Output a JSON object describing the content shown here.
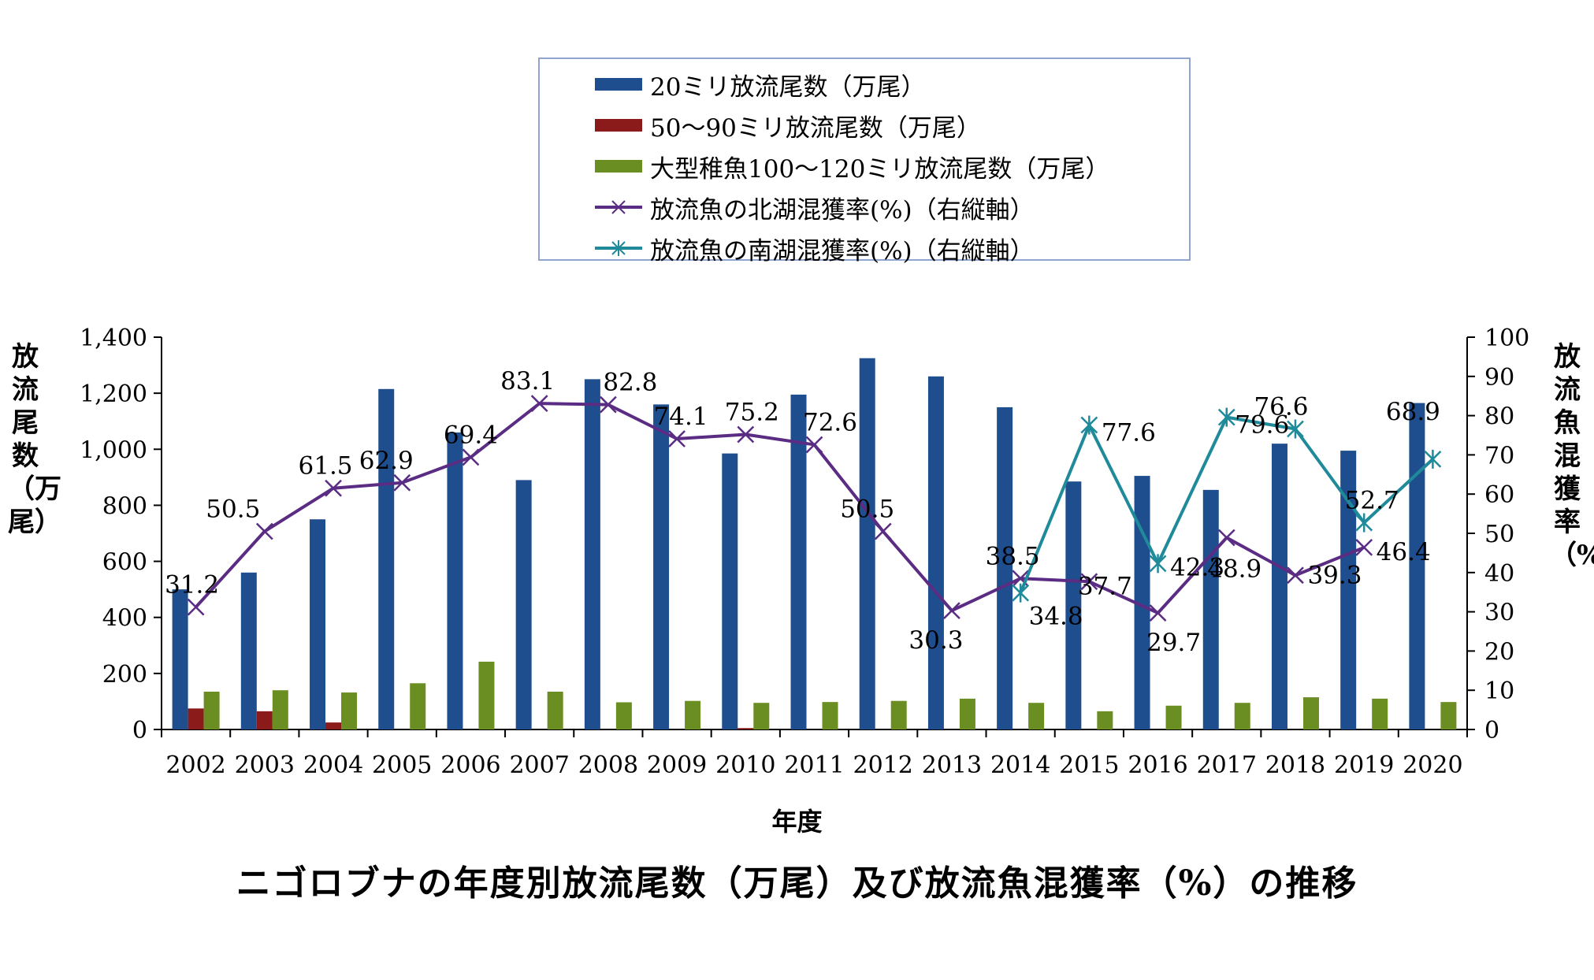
{
  "legend": {
    "s1": "20ミリ放流尾数（万尾）",
    "s2": "50～90ミリ放流尾数（万尾）",
    "s3": "大型稚魚100～120ミリ放流尾数（万尾）",
    "s4": "放流魚の北湖混獲率(%)（右縦軸）",
    "s5": "放流魚の南湖混獲率(%)（右縦軸）"
  },
  "labels": {
    "ylabel_left": "放流尾数（万尾）",
    "ylabel_right": "放流魚混獲率（%）",
    "xlabel": "年度",
    "title": "ニゴロブナの年度別放流尾数（万尾）及び放流魚混獲率（%）の推移"
  },
  "colors": {
    "s1": "#1f4e8f",
    "s2": "#8b1a1a",
    "s3": "#6b8e23",
    "s4": "#5b2c83",
    "s5": "#1f8a9a"
  },
  "chart_data": {
    "type": "bar",
    "categories": [
      "2002",
      "2003",
      "2004",
      "2005",
      "2006",
      "2007",
      "2008",
      "2009",
      "2010",
      "2011",
      "2012",
      "2013",
      "2014",
      "2015",
      "2016",
      "2017",
      "2018",
      "2019",
      "2020"
    ],
    "xlabel": "年度",
    "ylabel": "放流尾数（万尾）",
    "y2label": "放流魚混獲率（%）",
    "ylim": [
      0,
      1400
    ],
    "y2lim": [
      0,
      100
    ],
    "yticks": [
      "0",
      "200",
      "400",
      "600",
      "800",
      "1,000",
      "1,200",
      "1,400"
    ],
    "y2ticks": [
      "0",
      "10",
      "20",
      "30",
      "40",
      "50",
      "60",
      "70",
      "80",
      "90",
      "100"
    ],
    "grid": false,
    "legend_position": "top-center",
    "series": [
      {
        "name": "20ミリ放流尾数（万尾）",
        "type": "bar",
        "axis": "left",
        "values": [
          500,
          560,
          750,
          1215,
          1060,
          890,
          1250,
          1160,
          985,
          1195,
          1325,
          1260,
          1150,
          885,
          905,
          855,
          1020,
          995,
          1165
        ]
      },
      {
        "name": "50～90ミリ放流尾数（万尾）",
        "type": "bar",
        "axis": "left",
        "values": [
          75,
          65,
          25,
          0,
          0,
          0,
          0,
          0,
          5,
          0,
          0,
          0,
          0,
          0,
          0,
          0,
          0,
          0,
          0
        ]
      },
      {
        "name": "大型稚魚100～120ミリ放流尾数（万尾）",
        "type": "bar",
        "axis": "left",
        "values": [
          135,
          140,
          132,
          165,
          242,
          135,
          97,
          102,
          95,
          98,
          102,
          110,
          95,
          65,
          85,
          95,
          115,
          110,
          98
        ]
      },
      {
        "name": "放流魚の北湖混獲率(%)（右縦軸）",
        "type": "line",
        "axis": "right",
        "marker": "x",
        "values": [
          31.2,
          50.5,
          61.5,
          62.9,
          69.4,
          83.1,
          82.8,
          74.1,
          75.2,
          72.6,
          50.5,
          30.3,
          38.5,
          37.7,
          29.7,
          48.9,
          39.3,
          46.4,
          null
        ],
        "labels": [
          "31.2",
          "50.5",
          "61.5",
          "62.9",
          "69.4",
          "83.1",
          "82.8",
          "74.1",
          "75.2",
          "72.6",
          "50.5",
          "30.3",
          "38.5",
          "37.7",
          "29.7",
          "48.9",
          "39.3",
          "46.4",
          ""
        ]
      },
      {
        "name": "放流魚の南湖混獲率(%)（右縦軸）",
        "type": "line",
        "axis": "right",
        "marker": "asterisk",
        "values": [
          null,
          null,
          null,
          null,
          null,
          null,
          null,
          null,
          null,
          null,
          null,
          null,
          34.8,
          77.6,
          42.3,
          79.6,
          76.6,
          52.7,
          68.9
        ],
        "labels": [
          "",
          "",
          "",
          "",
          "",
          "",
          "",
          "",
          "",
          "",
          "",
          "",
          "34.8",
          "77.6",
          "42.3",
          "79.6",
          "76.6",
          "52.7",
          "68.9"
        ]
      }
    ]
  }
}
